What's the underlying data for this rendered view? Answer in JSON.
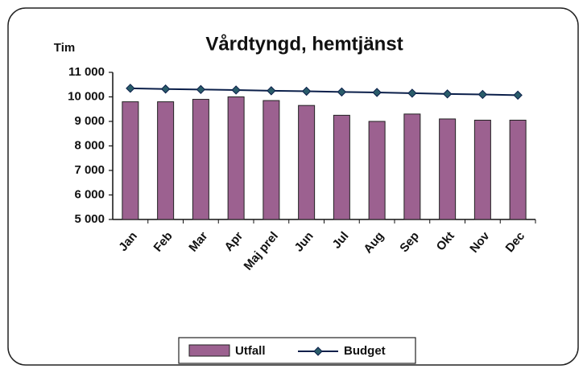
{
  "chart_data": {
    "type": "bar",
    "title": "Vårdtyngd, hemtjänst",
    "y_label": "Tim",
    "categories": [
      "Jan",
      "Feb",
      "Mar",
      "Apr",
      "Maj prel",
      "Jun",
      "Jul",
      "Aug",
      "Sep",
      "Okt",
      "Nov",
      "Dec"
    ],
    "series": [
      {
        "name": "Utfall",
        "type": "bar",
        "color": "#9c6190",
        "values": [
          9800,
          9800,
          9900,
          10000,
          9850,
          9650,
          9250,
          9000,
          9300,
          9100,
          9050,
          9050
        ]
      },
      {
        "name": "Budget",
        "type": "line",
        "color": "#0b1f4a",
        "values": [
          10350,
          10320,
          10300,
          10280,
          10250,
          10230,
          10200,
          10180,
          10150,
          10120,
          10100,
          10070
        ]
      }
    ],
    "ylim": [
      5000,
      11000
    ],
    "yticks": [
      {
        "value": 5000,
        "label": "5 000"
      },
      {
        "value": 6000,
        "label": "6 000"
      },
      {
        "value": 7000,
        "label": "7 000"
      },
      {
        "value": 8000,
        "label": "8 000"
      },
      {
        "value": 9000,
        "label": "9 000"
      },
      {
        "value": 10000,
        "label": "10 000"
      },
      {
        "value": 11000,
        "label": "11 000"
      }
    ],
    "legend": "bottom"
  }
}
